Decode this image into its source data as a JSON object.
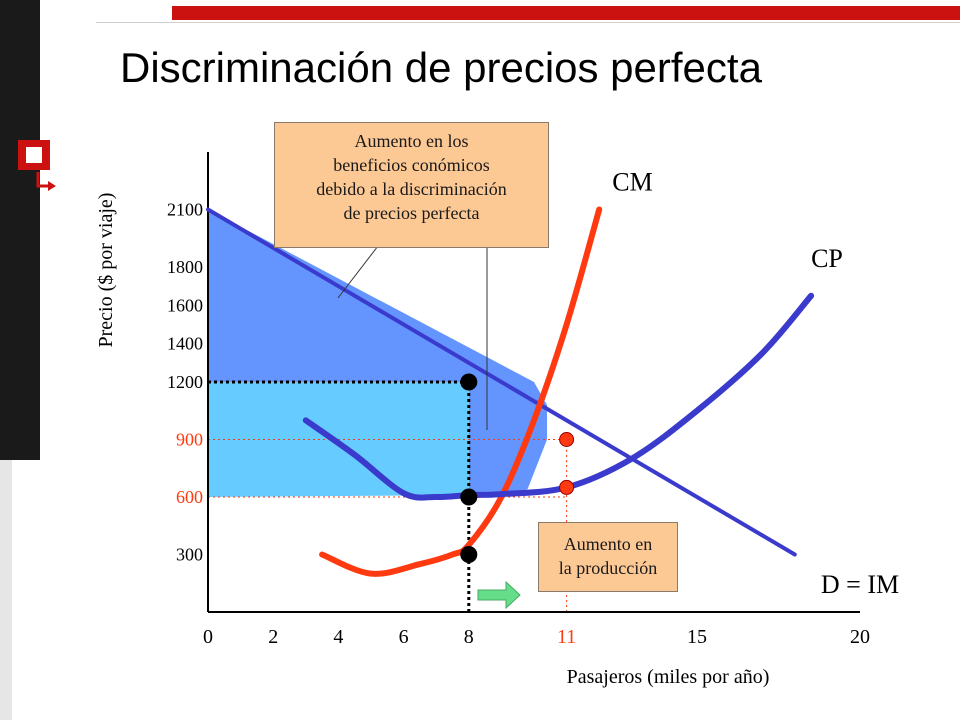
{
  "title": "Discriminación de precios perfecta",
  "colors": {
    "demand": "#3a3acc",
    "cm": "#ff3a10",
    "cp": "#3a3acc",
    "profit_fill": "#6495ff",
    "extra_fill": "#66ccff",
    "highlight_tick": "#ff3a10",
    "callout_fill": "#fcc894",
    "arrow": "#66dd88",
    "decoration_red": "#cc1111",
    "decoration_dark": "#1a1a1a"
  },
  "icons": [
    "slide-bullet-icon"
  ],
  "callouts": {
    "profit": [
      "Aumento en los",
      "beneficios conómicos",
      "debido a la discriminación",
      "de precios perfecta"
    ],
    "output": [
      "Aumento en",
      "la producción"
    ]
  },
  "chart_data": {
    "type": "line",
    "title": "",
    "xlabel": "Pasajeros (miles por año)",
    "ylabel": "Precio ($ por viaje)",
    "x_ticks": [
      {
        "value": 0,
        "label": "0",
        "highlight": false
      },
      {
        "value": 2,
        "label": "2",
        "highlight": false
      },
      {
        "value": 4,
        "label": "4",
        "highlight": false
      },
      {
        "value": 6,
        "label": "6",
        "highlight": false
      },
      {
        "value": 8,
        "label": "8",
        "highlight": false
      },
      {
        "value": 11,
        "label": "11",
        "highlight": true
      },
      {
        "value": 15,
        "label": "15",
        "highlight": false
      },
      {
        "value": 20,
        "label": "20",
        "highlight": false
      }
    ],
    "y_ticks": [
      {
        "value": 300,
        "label": "300",
        "highlight": false
      },
      {
        "value": 600,
        "label": "600",
        "highlight": true
      },
      {
        "value": 900,
        "label": "900",
        "highlight": true
      },
      {
        "value": 1200,
        "label": "1200",
        "highlight": false
      },
      {
        "value": 1400,
        "label": "1400",
        "highlight": false
      },
      {
        "value": 1600,
        "label": "1600",
        "highlight": false
      },
      {
        "value": 1800,
        "label": "1800",
        "highlight": false
      },
      {
        "value": 2100,
        "label": "2100",
        "highlight": false
      }
    ],
    "series": [
      {
        "name": "D = IM",
        "points": [
          [
            0,
            2100
          ],
          [
            10,
            1200
          ],
          [
            11,
            900
          ],
          [
            12,
            600
          ],
          [
            18,
            300
          ]
        ]
      },
      {
        "name": "CM",
        "points": [
          [
            3.5,
            300
          ],
          [
            5,
            200
          ],
          [
            6.5,
            250
          ],
          [
            7.5,
            300
          ],
          [
            8,
            350
          ],
          [
            9,
            600
          ],
          [
            10,
            1000
          ],
          [
            11,
            1500
          ],
          [
            12,
            2100
          ]
        ]
      },
      {
        "name": "CP",
        "points": [
          [
            3,
            1000
          ],
          [
            4.5,
            820
          ],
          [
            6,
            620
          ],
          [
            7,
            600
          ],
          [
            8,
            610
          ],
          [
            9,
            615
          ],
          [
            11,
            650
          ],
          [
            13,
            800
          ],
          [
            15,
            1050
          ],
          [
            17,
            1350
          ],
          [
            18.5,
            1650
          ]
        ]
      }
    ],
    "shaded_regions": [
      {
        "name": "profit",
        "points": [
          [
            0,
            2100
          ],
          [
            0,
            1200
          ],
          [
            8,
            1200
          ],
          [
            8,
            610
          ],
          [
            9,
            615
          ],
          [
            9.8,
            640
          ],
          [
            10.4,
            900
          ],
          [
            10.4,
            1080
          ],
          [
            10,
            1200
          ],
          [
            0,
            2100
          ]
        ]
      },
      {
        "name": "extra",
        "points": [
          [
            0,
            1200
          ],
          [
            0,
            600
          ],
          [
            8,
            610
          ],
          [
            8,
            1200
          ]
        ]
      }
    ],
    "points": [
      {
        "x": 8,
        "y": 1200,
        "color": "black"
      },
      {
        "x": 8,
        "y": 600,
        "color": "black"
      },
      {
        "x": 8,
        "y": 300,
        "color": "black"
      },
      {
        "x": 11,
        "y": 900,
        "color": "red"
      },
      {
        "x": 11,
        "y": 650,
        "color": "red"
      }
    ],
    "reference_lines": [
      {
        "orientation": "horizontal",
        "y": 1200,
        "x_from": 0,
        "x_to": 8,
        "style": "dotted",
        "color": "black"
      },
      {
        "orientation": "vertical",
        "x": 8,
        "y_from": 0,
        "y_to": 1200,
        "style": "dotted",
        "color": "black"
      },
      {
        "orientation": "horizontal",
        "y": 900,
        "x_from": 0,
        "x_to": 11,
        "style": "dotted",
        "color": "red"
      },
      {
        "orientation": "horizontal",
        "y": 600,
        "x_from": 0,
        "x_to": 11,
        "style": "dotted",
        "color": "red"
      },
      {
        "orientation": "vertical",
        "x": 11,
        "y_from": 0,
        "y_to": 900,
        "style": "dotted",
        "color": "red"
      }
    ],
    "series_labels": [
      {
        "text": "CM",
        "x": 12.4,
        "y": 2200
      },
      {
        "text": "CP",
        "x": 18.5,
        "y": 1800
      },
      {
        "text": "D = IM",
        "x": 18.8,
        "y": 100
      }
    ],
    "xlim": [
      0,
      20
    ],
    "ylim": [
      0,
      2400
    ],
    "grid": false,
    "legend": "none"
  }
}
